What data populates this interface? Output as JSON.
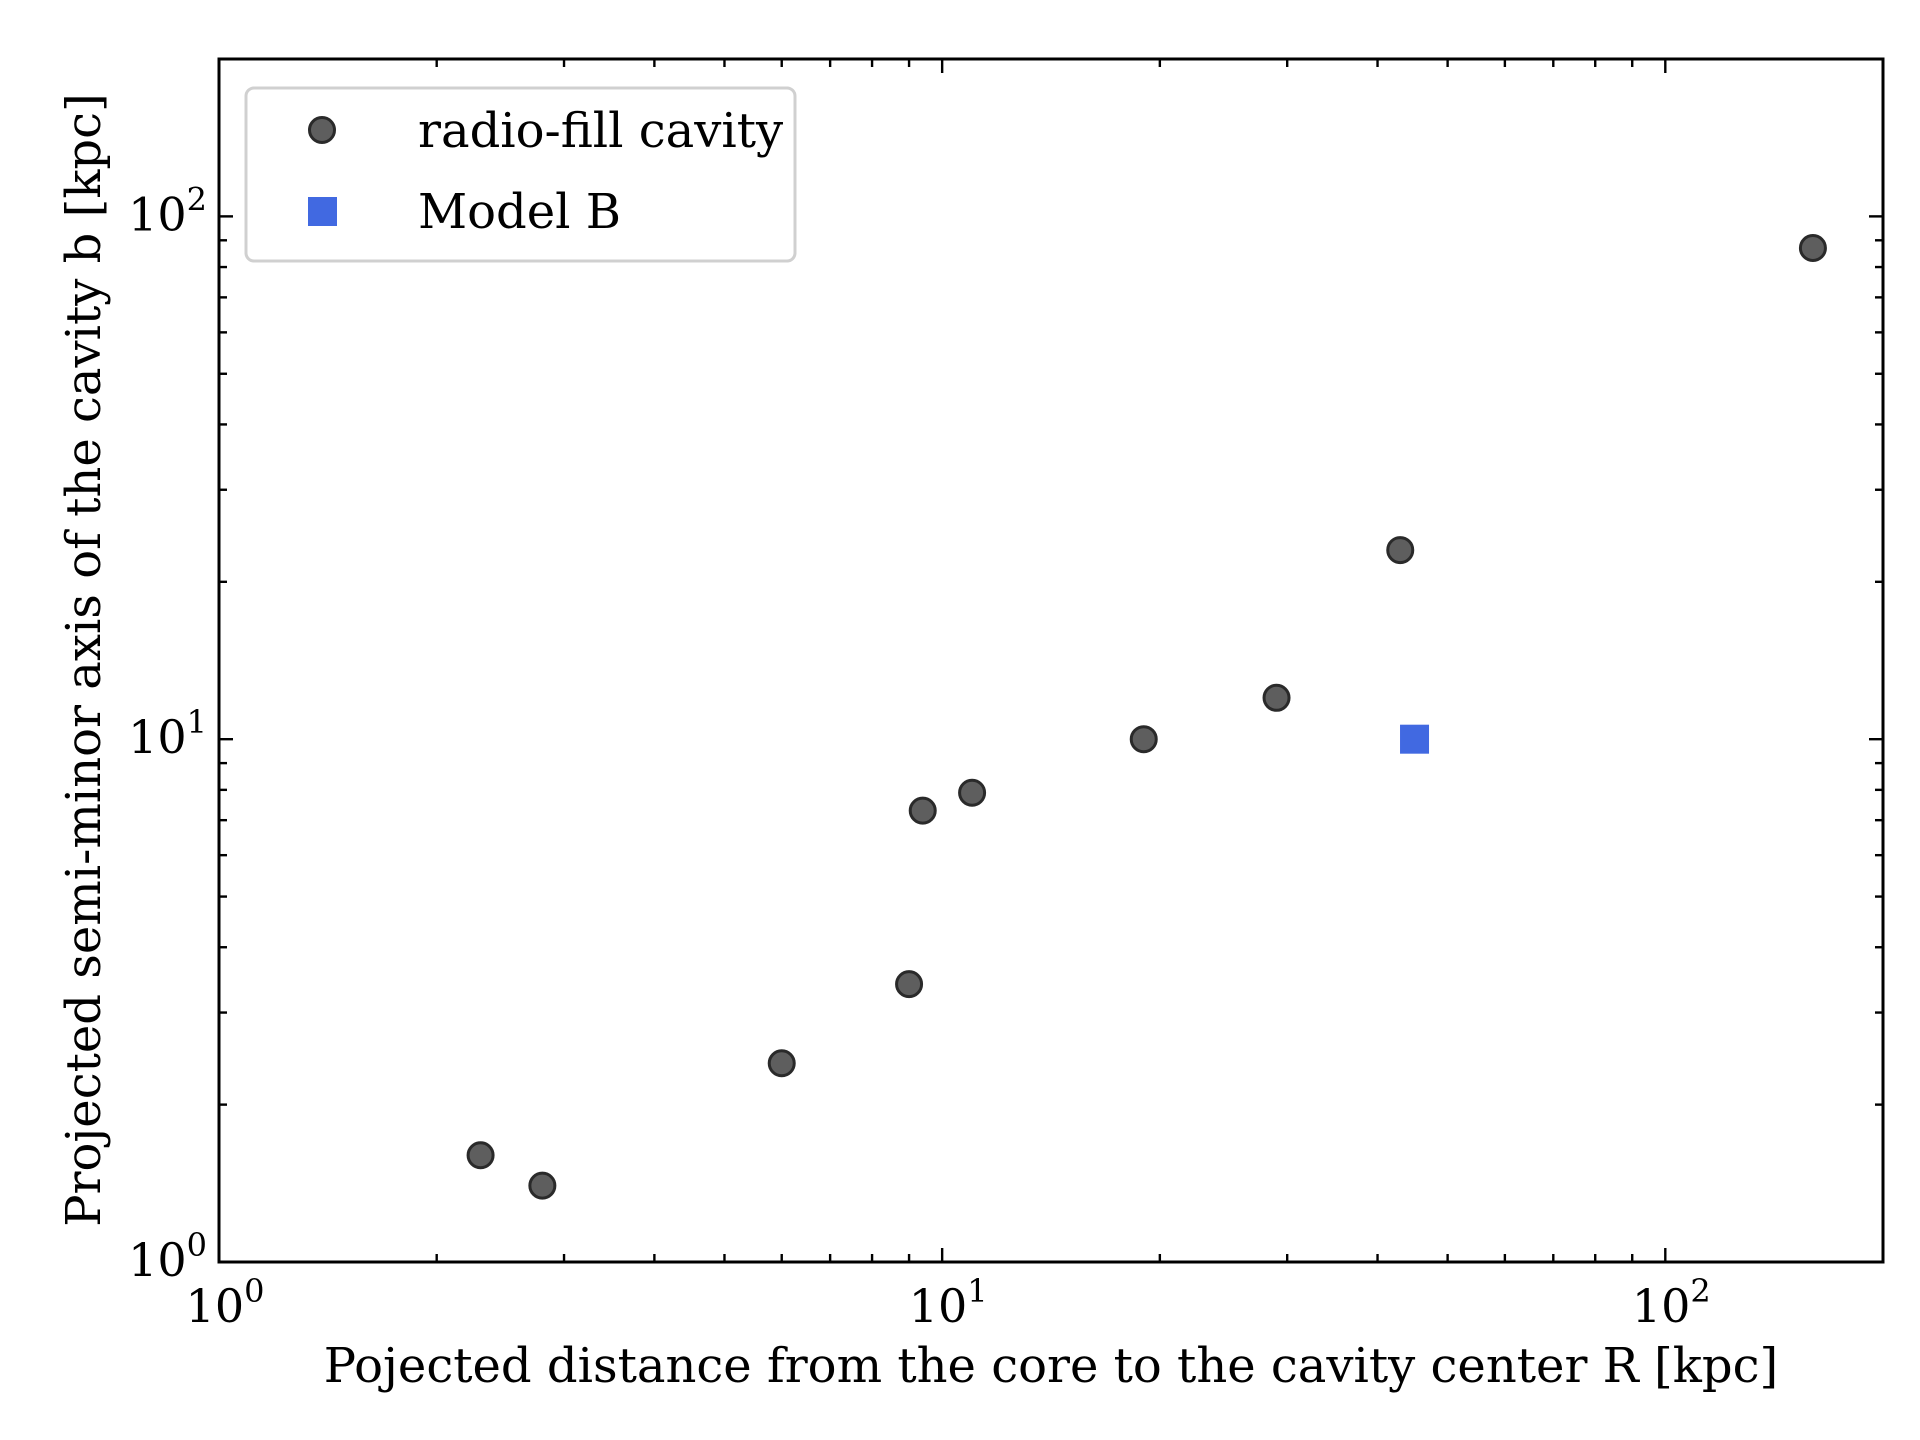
{
  "colors": {
    "circle_fill": "#5e5e5e",
    "circle_edge": "#2a2a2a",
    "square_fill": "#4169e1",
    "axes": "#000000",
    "legend_border": "#d0d0d0"
  },
  "chart_data": {
    "type": "scatter",
    "title": "",
    "xlabel": "Pojected distance from the core to the cavity center R [kpc]",
    "ylabel": "Projected semi-minor axis of the cavity b [kpc]",
    "xscale": "log",
    "yscale": "log",
    "xlim": [
      1,
      200
    ],
    "ylim": [
      1,
      200
    ],
    "x_ticks": [
      {
        "value": 1,
        "base": "10",
        "exp": "0"
      },
      {
        "value": 10,
        "base": "10",
        "exp": "1"
      },
      {
        "value": 100,
        "base": "10",
        "exp": "2"
      }
    ],
    "y_ticks": [
      {
        "value": 1,
        "base": "10",
        "exp": "0"
      },
      {
        "value": 10,
        "base": "10",
        "exp": "1"
      },
      {
        "value": 100,
        "base": "10",
        "exp": "2"
      }
    ],
    "legend_position": "top-left",
    "series": [
      {
        "name": "radio-fill cavity",
        "marker": "circle",
        "x": [
          2.3,
          2.8,
          6.0,
          9.0,
          9.4,
          11.0,
          19.0,
          29.0,
          43.0,
          160.0
        ],
        "y": [
          1.6,
          1.4,
          2.4,
          3.4,
          7.3,
          7.9,
          10.0,
          12.0,
          23.0,
          87.0
        ]
      },
      {
        "name": "Model B",
        "marker": "square",
        "x": [
          45.0
        ],
        "y": [
          10.0
        ]
      }
    ]
  }
}
